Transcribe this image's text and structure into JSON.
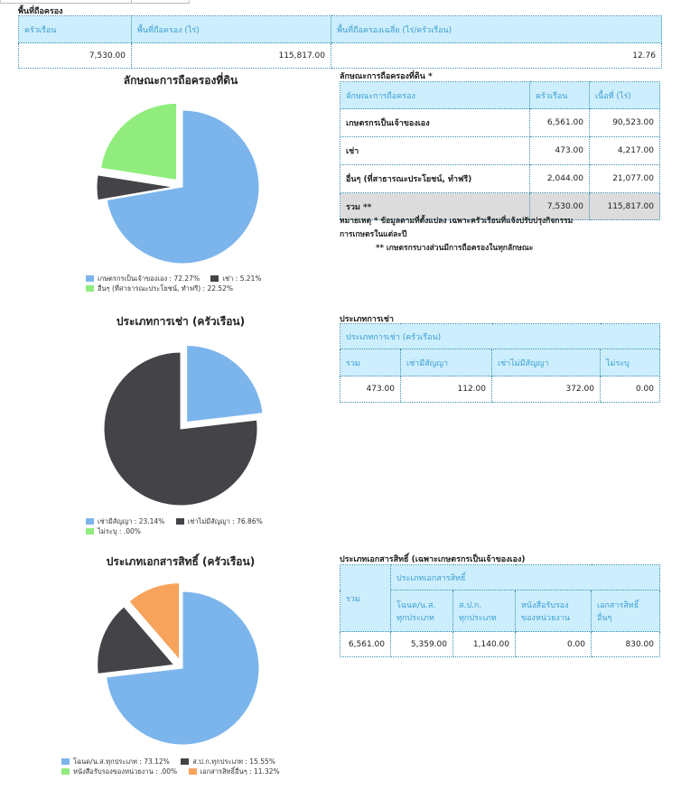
{
  "holding": {
    "title": "พื้นที่ถือครอง",
    "headers": [
      "ครัวเรือน",
      "พื้นที่ถือครอง (ไร่)",
      "พื้นที่ถือครองเฉลี่ย (ไร่/ครัวเรือน)"
    ],
    "values": [
      "7,530.00",
      "115,817.00",
      "12.76"
    ]
  },
  "land_tenure": {
    "title": "ลักษณะการถือครองที่ดิน *",
    "headers": [
      "ลักษณะการถือครอง",
      "ครัวเรือน",
      "เนื้อที่ (ไร่)"
    ],
    "rows": [
      {
        "label": "เกษตรกรเป็นเจ้าของเอง",
        "households": "6,561.00",
        "area": "90,523.00"
      },
      {
        "label": "เช่า",
        "households": "473.00",
        "area": "4,217.00"
      },
      {
        "label": "อื่นๆ (ที่สาธารณะประโยชน์, ทำฟรี)",
        "households": "2,044.00",
        "area": "21,077.00"
      }
    ],
    "total": {
      "label": "รวม **",
      "households": "7,530.00",
      "area": "115,817.00"
    },
    "note_line1": "หมายเหตุ * ข้อมูลตามที่ตั้งแปลง เฉพาะครัวเรือนที่แจ้งปรับปรุงกิจกรรม",
    "note_line2": "การเกษตรในแต่ละปี",
    "note_line3": "** เกษตรกรบางส่วนมีการถือครองในทุกลักษณะ"
  },
  "rental": {
    "title": "ประเภทการเช่า",
    "group_header": "ประเภทการเช่า (ครัวเรือน)",
    "headers": [
      "รวม",
      "เช่ามีสัญญา",
      "เช่าไม่มีสัญญา",
      "ไม่ระบุ"
    ],
    "values": [
      "473.00",
      "112.00",
      "372.00",
      "0.00"
    ]
  },
  "deeds": {
    "title": "ประเภทเอกสารสิทธิ์ (เฉพาะเกษตรกรเป็นเจ้าของเอง)",
    "total_header": "รวม",
    "group_header": "ประเภทเอกสารสิทธิ์",
    "headers": [
      [
        "โฉนด/น.ส.",
        "ทุกประเภท"
      ],
      [
        "ส.ป.ก.",
        "ทุกประเภท"
      ],
      [
        "หนังสือรับรอง",
        "ของหน่วยงาน"
      ],
      [
        "เอกสารสิทธิ์",
        "อื่นๆ"
      ]
    ],
    "values": [
      "6,561.00",
      "5,359.00",
      "1,140.00",
      "0.00",
      "830.00"
    ]
  },
  "chart_data": [
    {
      "type": "pie",
      "title": "ลักษณะการถือครองที่ดิน",
      "categories": [
        "เกษตรกรเป็นเจ้าของเอง",
        "เช่า",
        "อื่นๆ (ที่สาธารณะประโยชน์, ทำฟรี)"
      ],
      "values": [
        72.27,
        5.21,
        22.52
      ],
      "labels": [
        "72.27%",
        "5.21%",
        "22.52%"
      ],
      "colors": [
        "#7cb5ec",
        "#434348",
        "#90ed7d"
      ],
      "legend": "bottom"
    },
    {
      "type": "pie",
      "title": "ประเภทการเช่า (ครัวเรือน)",
      "categories": [
        "เช่ามีสัญญา",
        "เช่าไม่มีสัญญา",
        "ไม่ระบุ"
      ],
      "values": [
        23.14,
        76.86,
        0
      ],
      "labels": [
        "23.14%",
        "76.86%",
        ".00%"
      ],
      "colors": [
        "#7cb5ec",
        "#434348",
        "#90ed7d"
      ],
      "legend": "bottom"
    },
    {
      "type": "pie",
      "title": "ประเภทเอกสารสิทธิ์ (ครัวเรือน)",
      "categories": [
        "โฉนด/น.ส.ทุกประเภท",
        "ส.ป.ก.ทุกประเภท",
        "หนังสือรับรองของหน่วยงาน",
        "เอกสารสิทธิ์อื่นๆ"
      ],
      "values": [
        73.12,
        15.55,
        0,
        11.32
      ],
      "labels": [
        "73.12%",
        "15.55%",
        ".00%",
        "11.32%"
      ],
      "colors": [
        "#7cb5ec",
        "#434348",
        "#90ed7d",
        "#f7a35c"
      ],
      "legend": "bottom"
    }
  ]
}
